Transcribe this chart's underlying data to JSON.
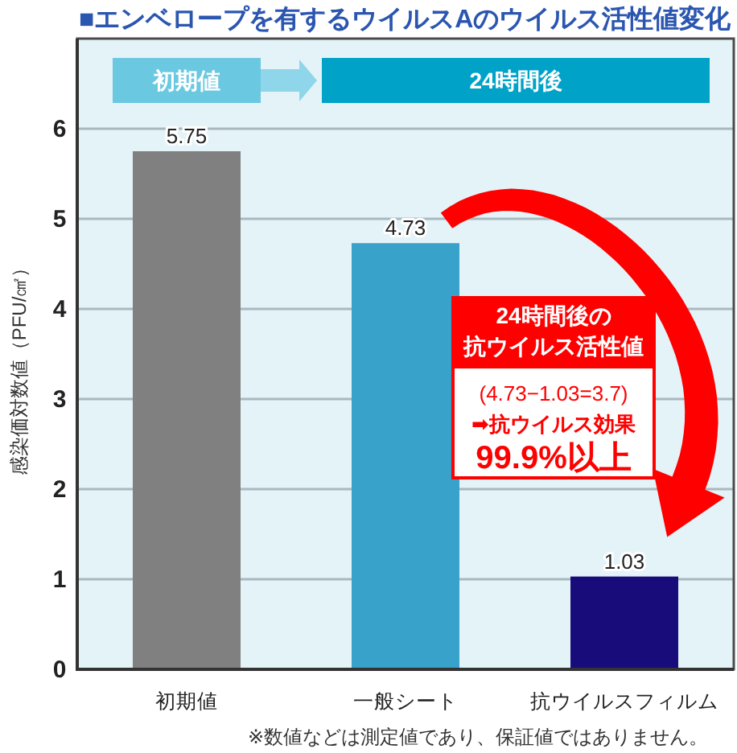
{
  "chart_data": {
    "type": "bar",
    "title": "■エンベロープを有するウイルスAのウイルス活性値変化",
    "ylabel": "感染価対数値（PFU/㎠）",
    "categories": [
      "初期値",
      "一般シート",
      "抗ウイルスフィルム"
    ],
    "values": [
      5.75,
      4.73,
      1.03
    ],
    "colors": [
      "#808080",
      "#38a2ca",
      "#170c7a"
    ],
    "data_labels": true,
    "ylim": [
      0,
      7
    ],
    "yticks": [
      0,
      1,
      2,
      3,
      4,
      5,
      6
    ],
    "grid": "y",
    "annotations": [
      "初期値",
      "24時間後",
      "24時間後の",
      "抗ウイルス活性値",
      "(4.73−1.03=3.7)",
      "➡抗ウイルス効果",
      "99.9%以上",
      "※数値などは測定値であり、保証値ではありません。"
    ]
  }
}
